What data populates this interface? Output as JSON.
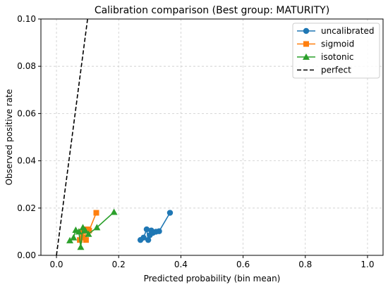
{
  "chart_data": {
    "type": "line",
    "title": "Calibration comparison (Best group: MATURITY)",
    "xlabel": "Predicted probability (bin mean)",
    "ylabel": "Observed positive rate",
    "xlim": [
      -0.05,
      1.05
    ],
    "ylim": [
      0,
      0.1
    ],
    "xticks": [
      "0.0",
      "0.2",
      "0.4",
      "0.6",
      "0.8",
      "1.0"
    ],
    "yticks": [
      "0.00",
      "0.02",
      "0.04",
      "0.06",
      "0.08",
      "0.10"
    ],
    "grid": true,
    "legend_position": "top-right",
    "series": [
      {
        "name": "uncalibrated",
        "color": "#1f77b4",
        "marker": "circle",
        "x": [
          0.27,
          0.28,
          0.29,
          0.295,
          0.3,
          0.305,
          0.31,
          0.32,
          0.33,
          0.365
        ],
        "y": [
          0.0065,
          0.0075,
          0.011,
          0.0065,
          0.0085,
          0.0105,
          0.0095,
          0.01,
          0.0102,
          0.018
        ]
      },
      {
        "name": "sigmoid",
        "color": "#ff7f0e",
        "marker": "square",
        "x": [
          0.075,
          0.08,
          0.085,
          0.09,
          0.095,
          0.1,
          0.105,
          0.128
        ],
        "y": [
          0.0065,
          0.01,
          0.0075,
          0.011,
          0.0065,
          0.011,
          0.0105,
          0.018
        ]
      },
      {
        "name": "isotonic",
        "color": "#2ca02c",
        "marker": "triangle",
        "x": [
          0.043,
          0.055,
          0.062,
          0.072,
          0.078,
          0.085,
          0.093,
          0.103,
          0.13,
          0.185
        ],
        "y": [
          0.0063,
          0.0075,
          0.0107,
          0.01,
          0.0035,
          0.0118,
          0.0105,
          0.009,
          0.0118,
          0.0183
        ]
      },
      {
        "name": "perfect",
        "color": "#000000",
        "marker": "none",
        "dashed": true,
        "x": [
          0,
          0.1
        ],
        "y": [
          0,
          0.1
        ]
      }
    ]
  }
}
